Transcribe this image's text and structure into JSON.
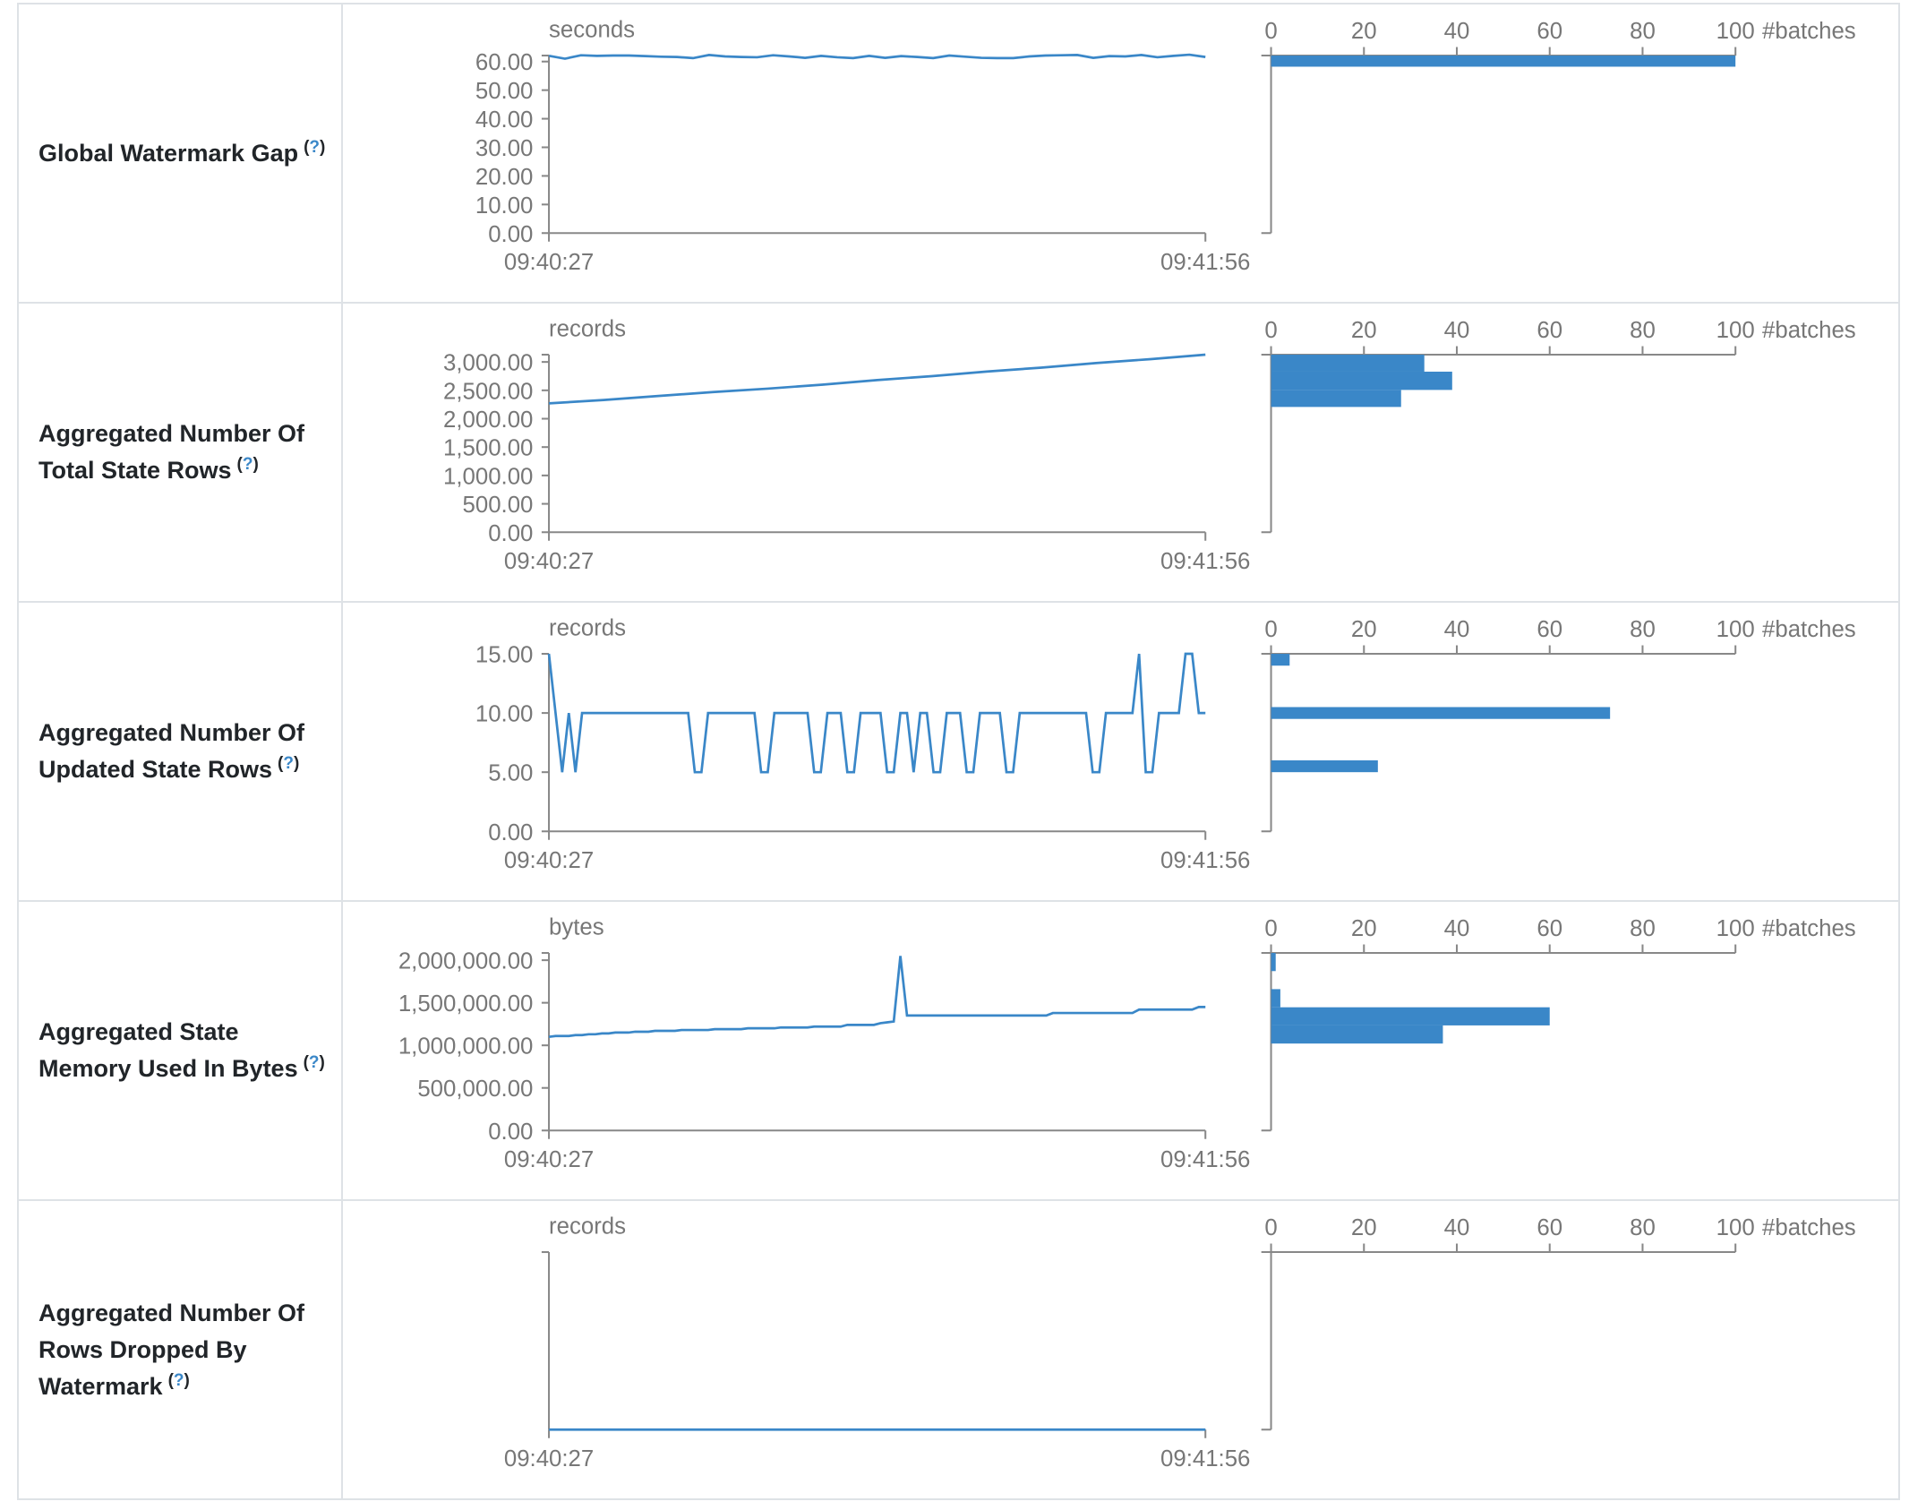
{
  "colors": {
    "line": "#3a87c8",
    "bar": "#3a87c8",
    "axis": "#888888",
    "tick_text": "#777777",
    "title_text": "#212529",
    "border": "#dee2e6"
  },
  "rows": [
    {
      "title": "Global Watermark Gap",
      "help": "?",
      "line": {
        "type": "line",
        "unit": "seconds",
        "ylim": [
          0,
          62.1
        ],
        "yticks": [
          0,
          10,
          20,
          30,
          40,
          50,
          60
        ],
        "ytick_labels": [
          "0.00",
          "10.00",
          "20.00",
          "30.00",
          "40.00",
          "50.00",
          "60.00"
        ],
        "x_labels": [
          "09:40:27",
          "09:41:56"
        ],
        "values": [
          62.0,
          61.0,
          62.2,
          62.0,
          62.1,
          62.1,
          61.9,
          61.7,
          61.6,
          61.2,
          62.3,
          61.8,
          61.6,
          61.5,
          62.2,
          61.8,
          61.3,
          62.0,
          61.5,
          61.2,
          62.0,
          61.3,
          61.9,
          61.6,
          61.2,
          62.1,
          61.7,
          61.3,
          61.2,
          61.2,
          61.8,
          62.1,
          62.2,
          62.3,
          61.3,
          61.9,
          61.8,
          62.3,
          61.5,
          62.0,
          62.4,
          61.6
        ]
      },
      "hist": {
        "type": "bar",
        "xlabel": "#batches",
        "xlim": [
          0,
          100
        ],
        "xticks": [
          0,
          20,
          40,
          60,
          80,
          100
        ],
        "xtick_labels": [
          "0",
          "20",
          "40",
          "60",
          "80",
          "100"
        ],
        "bins": [
          {
            "from": 58.2,
            "to": 62.1,
            "count": 100
          }
        ]
      }
    },
    {
      "title": "Aggregated Number Of Total State Rows",
      "help": "?",
      "line": {
        "type": "line",
        "unit": "records",
        "ylim": [
          0,
          3128
        ],
        "yticks": [
          0,
          500,
          1000,
          1500,
          2000,
          2500,
          3000
        ],
        "ytick_labels": [
          "0.00",
          "500.00",
          "1,000.00",
          "1,500.00",
          "2,000.00",
          "2,500.00",
          "3,000.00"
        ],
        "x_labels": [
          "09:40:27",
          "09:41:56"
        ],
        "values": [
          2270,
          2330,
          2400,
          2470,
          2530,
          2600,
          2680,
          2750,
          2830,
          2900,
          2980,
          3050,
          3128
        ]
      },
      "hist": {
        "type": "bar",
        "xlabel": "#batches",
        "xlim": [
          0,
          100
        ],
        "xticks": [
          0,
          20,
          40,
          60,
          80,
          100
        ],
        "xtick_labels": [
          "0",
          "20",
          "40",
          "60",
          "80",
          "100"
        ],
        "bins": [
          {
            "from": 2829,
            "to": 3128,
            "count": 33
          },
          {
            "from": 2507,
            "to": 2829,
            "count": 39
          },
          {
            "from": 2207,
            "to": 2507,
            "count": 28
          }
        ]
      }
    },
    {
      "title": "Aggregated Number Of Updated State Rows",
      "help": "?",
      "line": {
        "type": "line",
        "unit": "records",
        "ylim": [
          0,
          15
        ],
        "yticks": [
          0,
          5,
          10,
          15
        ],
        "ytick_labels": [
          "0.00",
          "5.00",
          "10.00",
          "15.00"
        ],
        "x_labels": [
          "09:40:27",
          "09:41:56"
        ],
        "values": [
          15,
          10,
          5,
          10,
          5,
          10,
          10,
          10,
          10,
          10,
          10,
          10,
          10,
          10,
          10,
          10,
          10,
          10,
          10,
          10,
          10,
          10,
          5,
          5,
          10,
          10,
          10,
          10,
          10,
          10,
          10,
          10,
          5,
          5,
          10,
          10,
          10,
          10,
          10,
          10,
          5,
          5,
          10,
          10,
          10,
          5,
          5,
          10,
          10,
          10,
          10,
          5,
          5,
          10,
          10,
          5,
          10,
          10,
          5,
          5,
          10,
          10,
          10,
          5,
          5,
          10,
          10,
          10,
          10,
          5,
          5,
          10,
          10,
          10,
          10,
          10,
          10,
          10,
          10,
          10,
          10,
          10,
          5,
          5,
          10,
          10,
          10,
          10,
          10,
          15,
          5,
          5,
          10,
          10,
          10,
          10,
          15,
          15,
          10,
          10
        ]
      },
      "hist": {
        "type": "bar",
        "xlabel": "#batches",
        "xlim": [
          0,
          100
        ],
        "xticks": [
          0,
          20,
          40,
          60,
          80,
          100
        ],
        "xtick_labels": [
          "0",
          "20",
          "40",
          "60",
          "80",
          "100"
        ],
        "bins": [
          {
            "from": 14.0,
            "to": 15.0,
            "count": 4
          },
          {
            "from": 9.5,
            "to": 10.5,
            "count": 73
          },
          {
            "from": 5.0,
            "to": 6.0,
            "count": 23
          }
        ]
      }
    },
    {
      "title": "Aggregated State Memory Used In Bytes",
      "help": "?",
      "line": {
        "type": "line",
        "unit": "bytes",
        "ylim": [
          0,
          2085000
        ],
        "yticks": [
          0,
          500000,
          1000000,
          1500000,
          2000000
        ],
        "ytick_labels": [
          "0.00",
          "500,000.00",
          "1,000,000.00",
          "1,500,000.00",
          "2,000,000.00"
        ],
        "x_labels": [
          "09:40:27",
          "09:41:56"
        ],
        "values": [
          1100000,
          1110000,
          1110000,
          1110000,
          1120000,
          1120000,
          1130000,
          1130000,
          1140000,
          1140000,
          1150000,
          1150000,
          1150000,
          1160000,
          1160000,
          1160000,
          1170000,
          1170000,
          1170000,
          1170000,
          1180000,
          1180000,
          1180000,
          1180000,
          1180000,
          1190000,
          1190000,
          1190000,
          1190000,
          1190000,
          1200000,
          1200000,
          1200000,
          1200000,
          1200000,
          1210000,
          1210000,
          1210000,
          1210000,
          1210000,
          1220000,
          1220000,
          1220000,
          1220000,
          1220000,
          1240000,
          1240000,
          1240000,
          1240000,
          1240000,
          1260000,
          1270000,
          1280000,
          2050000,
          1350000,
          1350000,
          1350000,
          1350000,
          1350000,
          1350000,
          1350000,
          1350000,
          1350000,
          1350000,
          1350000,
          1350000,
          1350000,
          1350000,
          1350000,
          1350000,
          1350000,
          1350000,
          1350000,
          1350000,
          1350000,
          1350000,
          1380000,
          1380000,
          1380000,
          1380000,
          1380000,
          1380000,
          1380000,
          1380000,
          1380000,
          1380000,
          1380000,
          1380000,
          1380000,
          1420000,
          1420000,
          1420000,
          1420000,
          1420000,
          1420000,
          1420000,
          1420000,
          1420000,
          1450000,
          1450000
        ]
      },
      "hist": {
        "type": "bar",
        "xlabel": "#batches",
        "xlim": [
          0,
          100
        ],
        "xticks": [
          0,
          20,
          40,
          60,
          80,
          100
        ],
        "xtick_labels": [
          "0",
          "20",
          "40",
          "60",
          "80",
          "100"
        ],
        "bins": [
          {
            "from": 1872000,
            "to": 2085000,
            "count": 1
          },
          {
            "from": 1447000,
            "to": 1660000,
            "count": 2
          },
          {
            "from": 1234000,
            "to": 1447000,
            "count": 60
          },
          {
            "from": 1021000,
            "to": 1234000,
            "count": 37
          }
        ]
      }
    },
    {
      "title": "Aggregated Number Of Rows Dropped By Watermark",
      "help": "?",
      "line": {
        "type": "line",
        "unit": "records",
        "ylim": [
          0,
          1
        ],
        "yticks": [],
        "ytick_labels": [],
        "x_labels": [
          "09:40:27",
          "09:41:56"
        ],
        "values": [
          0,
          0
        ]
      },
      "hist": {
        "type": "bar",
        "xlabel": "#batches",
        "xlim": [
          0,
          100
        ],
        "xticks": [
          0,
          20,
          40,
          60,
          80,
          100
        ],
        "xtick_labels": [
          "0",
          "20",
          "40",
          "60",
          "80",
          "100"
        ],
        "bins": []
      }
    }
  ]
}
